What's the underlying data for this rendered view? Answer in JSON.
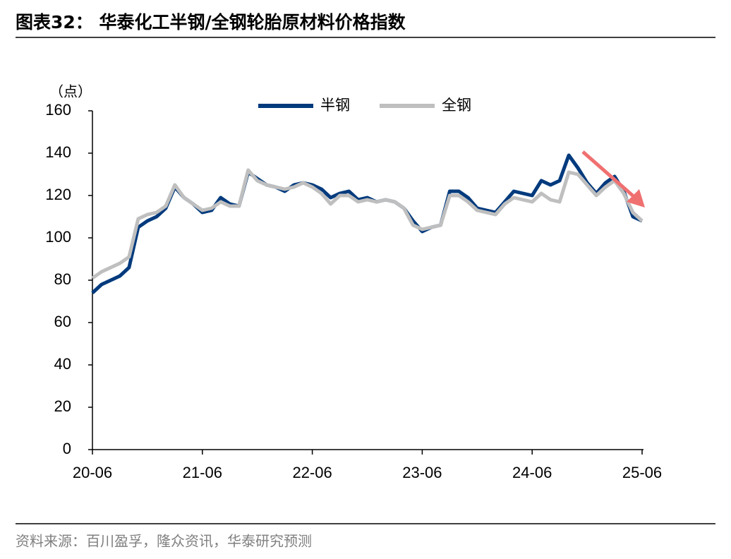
{
  "chart_data": {
    "type": "line",
    "title": "图表32： 华泰化工半钢/全钢轮胎原材料价格指数",
    "y_unit_label": "（点）",
    "source": "资料来源：百川盈孚，隆众资讯，华泰研究预测",
    "legend": "top-center",
    "x": [
      "20-06",
      "20-07",
      "20-08",
      "20-09",
      "20-10",
      "20-11",
      "20-12",
      "21-01",
      "21-02",
      "21-03",
      "21-04",
      "21-05",
      "21-06",
      "21-07",
      "21-08",
      "21-09",
      "21-10",
      "21-11",
      "21-12",
      "22-01",
      "22-02",
      "22-03",
      "22-04",
      "22-05",
      "22-06",
      "22-07",
      "22-08",
      "22-09",
      "22-10",
      "22-11",
      "22-12",
      "23-01",
      "23-02",
      "23-03",
      "23-04",
      "23-05",
      "23-06",
      "23-07",
      "23-08",
      "23-09",
      "23-10",
      "23-11",
      "23-12",
      "24-01",
      "24-02",
      "24-03",
      "24-04",
      "24-05",
      "24-06",
      "24-07",
      "24-08",
      "24-09",
      "24-10",
      "24-11",
      "24-12",
      "25-01",
      "25-02",
      "25-03",
      "25-04",
      "25-05",
      "25-06"
    ],
    "xticks": [
      "20-06",
      "21-06",
      "22-06",
      "23-06",
      "24-06",
      "25-06"
    ],
    "ylim": [
      0,
      160
    ],
    "yticks": [
      0,
      20,
      40,
      60,
      80,
      100,
      120,
      140,
      160
    ],
    "series": [
      {
        "name": "半钢",
        "color": "#003a7d",
        "values": [
          74,
          78,
          80,
          82,
          86,
          105,
          108,
          110,
          114,
          124,
          119,
          116,
          112,
          113,
          119,
          116,
          115,
          131,
          128,
          125,
          124,
          122,
          125,
          126,
          125,
          123,
          119,
          121,
          122,
          118,
          119,
          117,
          118,
          117,
          114,
          108,
          103,
          105,
          106,
          122,
          122,
          119,
          114,
          113,
          112,
          117,
          122,
          121,
          120,
          127,
          125,
          127,
          139,
          133,
          126,
          121,
          126,
          129,
          122,
          110,
          108
        ]
      },
      {
        "name": "全钢",
        "color": "#bfbfbf",
        "values": [
          81,
          84,
          86,
          88,
          91,
          109,
          111,
          112,
          115,
          125,
          119,
          116,
          113,
          114,
          117,
          115,
          115,
          132,
          127,
          125,
          124,
          123,
          124,
          126,
          124,
          121,
          116,
          120,
          120,
          117,
          118,
          117,
          118,
          117,
          114,
          106,
          104,
          105,
          106,
          120,
          120,
          117,
          113,
          112,
          111,
          116,
          119,
          118,
          117,
          121,
          118,
          117,
          131,
          130,
          125,
          120,
          124,
          127,
          121,
          112,
          108
        ]
      }
    ]
  }
}
